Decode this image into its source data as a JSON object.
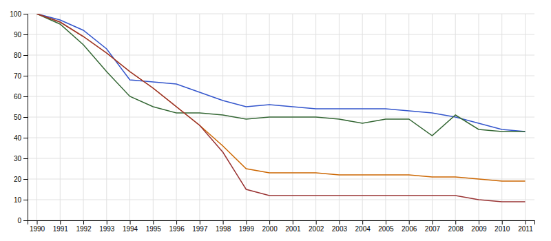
{
  "chart_data": {
    "type": "line",
    "x": [
      1990,
      1991,
      1992,
      1993,
      1994,
      1995,
      1996,
      1997,
      1998,
      1999,
      2000,
      2001,
      2002,
      2003,
      2004,
      2005,
      2006,
      2007,
      2008,
      2009,
      2010,
      2011
    ],
    "series": [
      {
        "color": "#3355cc",
        "values": [
          100,
          97,
          92,
          83,
          68,
          67,
          66,
          62,
          58,
          55,
          56,
          55,
          54,
          54,
          54,
          54,
          53,
          52,
          50,
          47,
          44,
          43
        ]
      },
      {
        "color": "#336633",
        "values": [
          100,
          95,
          85,
          72,
          60,
          55,
          52,
          52,
          51,
          49,
          50,
          50,
          50,
          49,
          47,
          49,
          49,
          41,
          51,
          44,
          43,
          43
        ]
      },
      {
        "color": "#cc6600",
        "values": [
          100,
          96,
          89,
          81,
          72,
          64,
          55,
          46,
          36,
          25,
          23,
          23,
          23,
          22,
          22,
          22,
          22,
          21,
          21,
          20,
          19,
          19
        ]
      },
      {
        "color": "#993333",
        "values": [
          100,
          96,
          89,
          81,
          72,
          64,
          55,
          46,
          33,
          15,
          12,
          12,
          12,
          12,
          12,
          12,
          12,
          12,
          12,
          10,
          9,
          9
        ]
      }
    ],
    "xlim": [
      1989.6,
      2011.4
    ],
    "ylim": [
      0,
      100
    ],
    "xticks": [
      1990,
      1991,
      1992,
      1993,
      1994,
      1995,
      1996,
      1997,
      1998,
      1999,
      2000,
      2001,
      2002,
      2003,
      2004,
      2005,
      2006,
      2007,
      2008,
      2009,
      2010,
      2011
    ],
    "yticks": [
      0,
      10,
      20,
      30,
      40,
      50,
      60,
      70,
      80,
      90,
      100
    ],
    "grid": true
  }
}
